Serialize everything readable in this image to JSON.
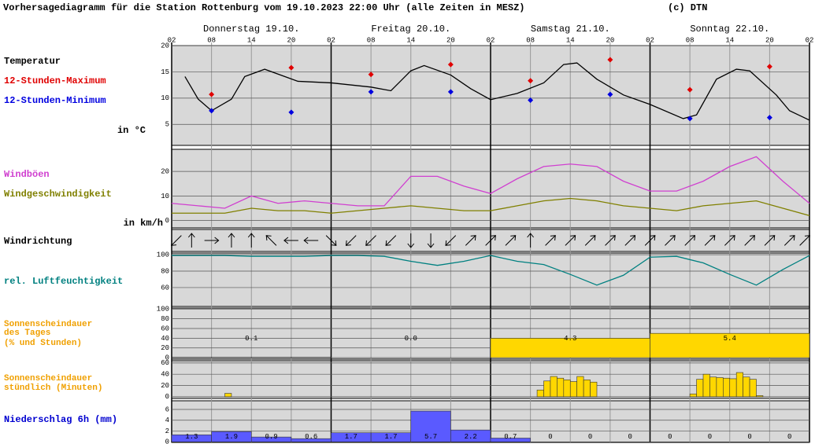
{
  "header": {
    "title": "Vorhersagediagramm für die Station Rottenburg vom 19.10.2023 22:00 Uhr (alle Zeiten in MESZ)",
    "copyright": "(c) DTN",
    "days": [
      "Donnerstag 19.10.",
      "Freitag 20.10.",
      "Samstag 21.10.",
      "Sonntag 22.10."
    ]
  },
  "chart_data": [
    {
      "type": "line",
      "xlim": [
        0,
        96
      ],
      "xticks": [
        {
          "value": 0,
          "label": "02"
        },
        {
          "value": 6,
          "label": "08"
        },
        {
          "value": 12,
          "label": "14"
        },
        {
          "value": 18,
          "label": "20"
        },
        {
          "value": 24,
          "label": "02"
        },
        {
          "value": 30,
          "label": "08"
        },
        {
          "value": 36,
          "label": "14"
        },
        {
          "value": 42,
          "label": "20"
        },
        {
          "value": 48,
          "label": "02"
        },
        {
          "value": 54,
          "label": "08"
        },
        {
          "value": 60,
          "label": "14"
        },
        {
          "value": 66,
          "label": "20"
        },
        {
          "value": 72,
          "label": "02"
        },
        {
          "value": 78,
          "label": "08"
        },
        {
          "value": 84,
          "label": "14"
        },
        {
          "value": 90,
          "label": "20"
        },
        {
          "value": 96,
          "label": "02"
        }
      ],
      "ylim": [
        1,
        20
      ],
      "yticks": [
        5,
        10,
        15,
        20
      ],
      "unit_label": "in °C",
      "series": [
        {
          "name": "Temperatur",
          "color": "#000000",
          "x": [
            2,
            4,
            6,
            9,
            11,
            14,
            19,
            24,
            30,
            33,
            36,
            38,
            42,
            45,
            48,
            52,
            56,
            59,
            61,
            64,
            68,
            72,
            77,
            79,
            82,
            85,
            87,
            91,
            93,
            96
          ],
          "values": [
            14.1,
            9.8,
            7.6,
            9.8,
            14.1,
            15.5,
            13.2,
            12.9,
            12.1,
            11.4,
            15.2,
            16.2,
            14.4,
            11.8,
            9.7,
            10.9,
            12.9,
            16.4,
            16.7,
            13.6,
            10.6,
            8.8,
            6.1,
            6.8,
            13.6,
            15.5,
            15.2,
            10.6,
            7.6,
            5.8
          ]
        },
        {
          "name": "12-Stunden-Maximum",
          "type": "scatter",
          "color": "#e00000",
          "x": [
            6,
            18,
            30,
            42,
            54,
            66,
            78,
            90
          ],
          "values": [
            10.7,
            15.8,
            14.5,
            16.4,
            13.3,
            17.3,
            11.6,
            16.0
          ]
        },
        {
          "name": "12-Stunden-Minimum",
          "type": "scatter",
          "color": "#0000e0",
          "x": [
            6,
            18,
            30,
            42,
            54,
            66,
            78,
            90
          ],
          "values": [
            7.6,
            7.3,
            11.2,
            11.2,
            9.6,
            10.7,
            6.1,
            6.3
          ]
        }
      ]
    },
    {
      "type": "line",
      "ylim": [
        -3,
        29
      ],
      "yticks": [
        0,
        10,
        20
      ],
      "unit_label": "in km/h",
      "series": [
        {
          "name": "Windböen",
          "color": "#d040d0",
          "x": [
            0,
            4,
            8,
            12,
            16,
            20,
            24,
            28,
            32,
            36,
            40,
            44,
            48,
            52,
            56,
            60,
            64,
            68,
            72,
            76,
            80,
            84,
            88,
            92,
            96
          ],
          "values": [
            7,
            6,
            5,
            10,
            7,
            8,
            7,
            6,
            6,
            18,
            18,
            14,
            11,
            17,
            22,
            23,
            22,
            16,
            12,
            12,
            16,
            22,
            26,
            16,
            7
          ]
        },
        {
          "name": "Windgeschwindigkeit",
          "color": "#808000",
          "x": [
            0,
            4,
            8,
            12,
            16,
            20,
            24,
            28,
            32,
            36,
            40,
            44,
            48,
            52,
            56,
            60,
            64,
            68,
            72,
            76,
            80,
            84,
            88,
            92,
            96
          ],
          "values": [
            3,
            3,
            3,
            5,
            4,
            4,
            3,
            4,
            5,
            6,
            5,
            4,
            4,
            6,
            8,
            9,
            8,
            6,
            5,
            4,
            6,
            7,
            8,
            5,
            2
          ]
        }
      ]
    },
    {
      "type": "arrows",
      "name": "Windrichtung",
      "x": [
        0,
        3,
        6,
        9,
        12,
        15,
        18,
        21,
        24,
        27,
        30,
        33,
        36,
        39,
        42,
        45,
        48,
        51,
        54,
        57,
        60,
        63,
        66,
        69,
        72,
        75,
        78,
        81,
        84,
        87,
        90,
        93,
        96
      ],
      "values": [
        225,
        0,
        90,
        0,
        0,
        315,
        270,
        270,
        135,
        225,
        225,
        225,
        180,
        180,
        225,
        45,
        45,
        45,
        0,
        45,
        45,
        45,
        45,
        45,
        45,
        45,
        45,
        45,
        45,
        45,
        45,
        45,
        45
      ]
    },
    {
      "type": "line",
      "ylim": [
        37,
        102
      ],
      "yticks": [
        60,
        80,
        100
      ],
      "series": [
        {
          "name": "rel. Luftfeuchtigkeit",
          "color": "#008080",
          "x": [
            0,
            4,
            8,
            12,
            16,
            20,
            24,
            28,
            32,
            36,
            40,
            44,
            48,
            52,
            56,
            60,
            64,
            68,
            72,
            76,
            80,
            84,
            88,
            92,
            96
          ],
          "values": [
            99,
            99,
            99,
            98,
            98,
            98,
            99,
            99,
            98,
            92,
            87,
            92,
            99,
            92,
            88,
            76,
            63,
            75,
            97,
            98,
            90,
            76,
            63,
            82,
            99
          ]
        }
      ]
    },
    {
      "type": "bar",
      "name_lines": [
        "Sonnenscheindauer",
        "des Tages",
        "(% und Stunden)"
      ],
      "label_color": "#f0a000",
      "ylim": [
        -3,
        102
      ],
      "yticks": [
        0,
        20,
        40,
        60,
        80,
        100
      ],
      "x": [
        0,
        24,
        48,
        72
      ],
      "width": 24,
      "values": [
        1,
        0,
        40,
        50
      ],
      "hours": [
        0.1,
        0,
        4.3,
        5.4
      ],
      "value_labels": [
        "0.1",
        "0.0",
        "4.3",
        "5.4"
      ],
      "colors": [
        "#000000",
        "#000000",
        "#ffd700",
        "#ffd700"
      ]
    },
    {
      "type": "bar",
      "name_lines": [
        "Sonnenscheindauer",
        "stündlich (Minuten)"
      ],
      "label_color": "#f0a000",
      "ylim": [
        -3,
        64
      ],
      "yticks": [
        0,
        20,
        40,
        60
      ],
      "x": [
        8,
        55,
        56,
        57,
        58,
        59,
        60,
        61,
        62,
        63,
        78,
        79,
        80,
        81,
        82,
        83,
        84,
        85,
        86,
        87,
        88
      ],
      "width": 1,
      "values": [
        6,
        12,
        28,
        36,
        33,
        30,
        27,
        36,
        30,
        26,
        5,
        31,
        40,
        35,
        34,
        33,
        32,
        43,
        35,
        31,
        2
      ],
      "color": "#ffd700"
    },
    {
      "type": "bar",
      "name_lines": [
        "Niederschlag 6h (mm)"
      ],
      "label_color": "#0000d0",
      "ylim": [
        -0.1,
        7.6
      ],
      "yticks": [
        0,
        2,
        4,
        6
      ],
      "x": [
        0,
        6,
        12,
        18,
        24,
        30,
        36,
        42,
        48,
        54,
        60,
        66,
        72,
        78,
        84,
        90
      ],
      "width": 6,
      "values": [
        1.3,
        1.9,
        0.9,
        0.6,
        1.7,
        1.7,
        5.7,
        2.2,
        0.7,
        0,
        0,
        0,
        0,
        0,
        0,
        0
      ],
      "color": "#5a5aff",
      "print_values": true
    }
  ]
}
